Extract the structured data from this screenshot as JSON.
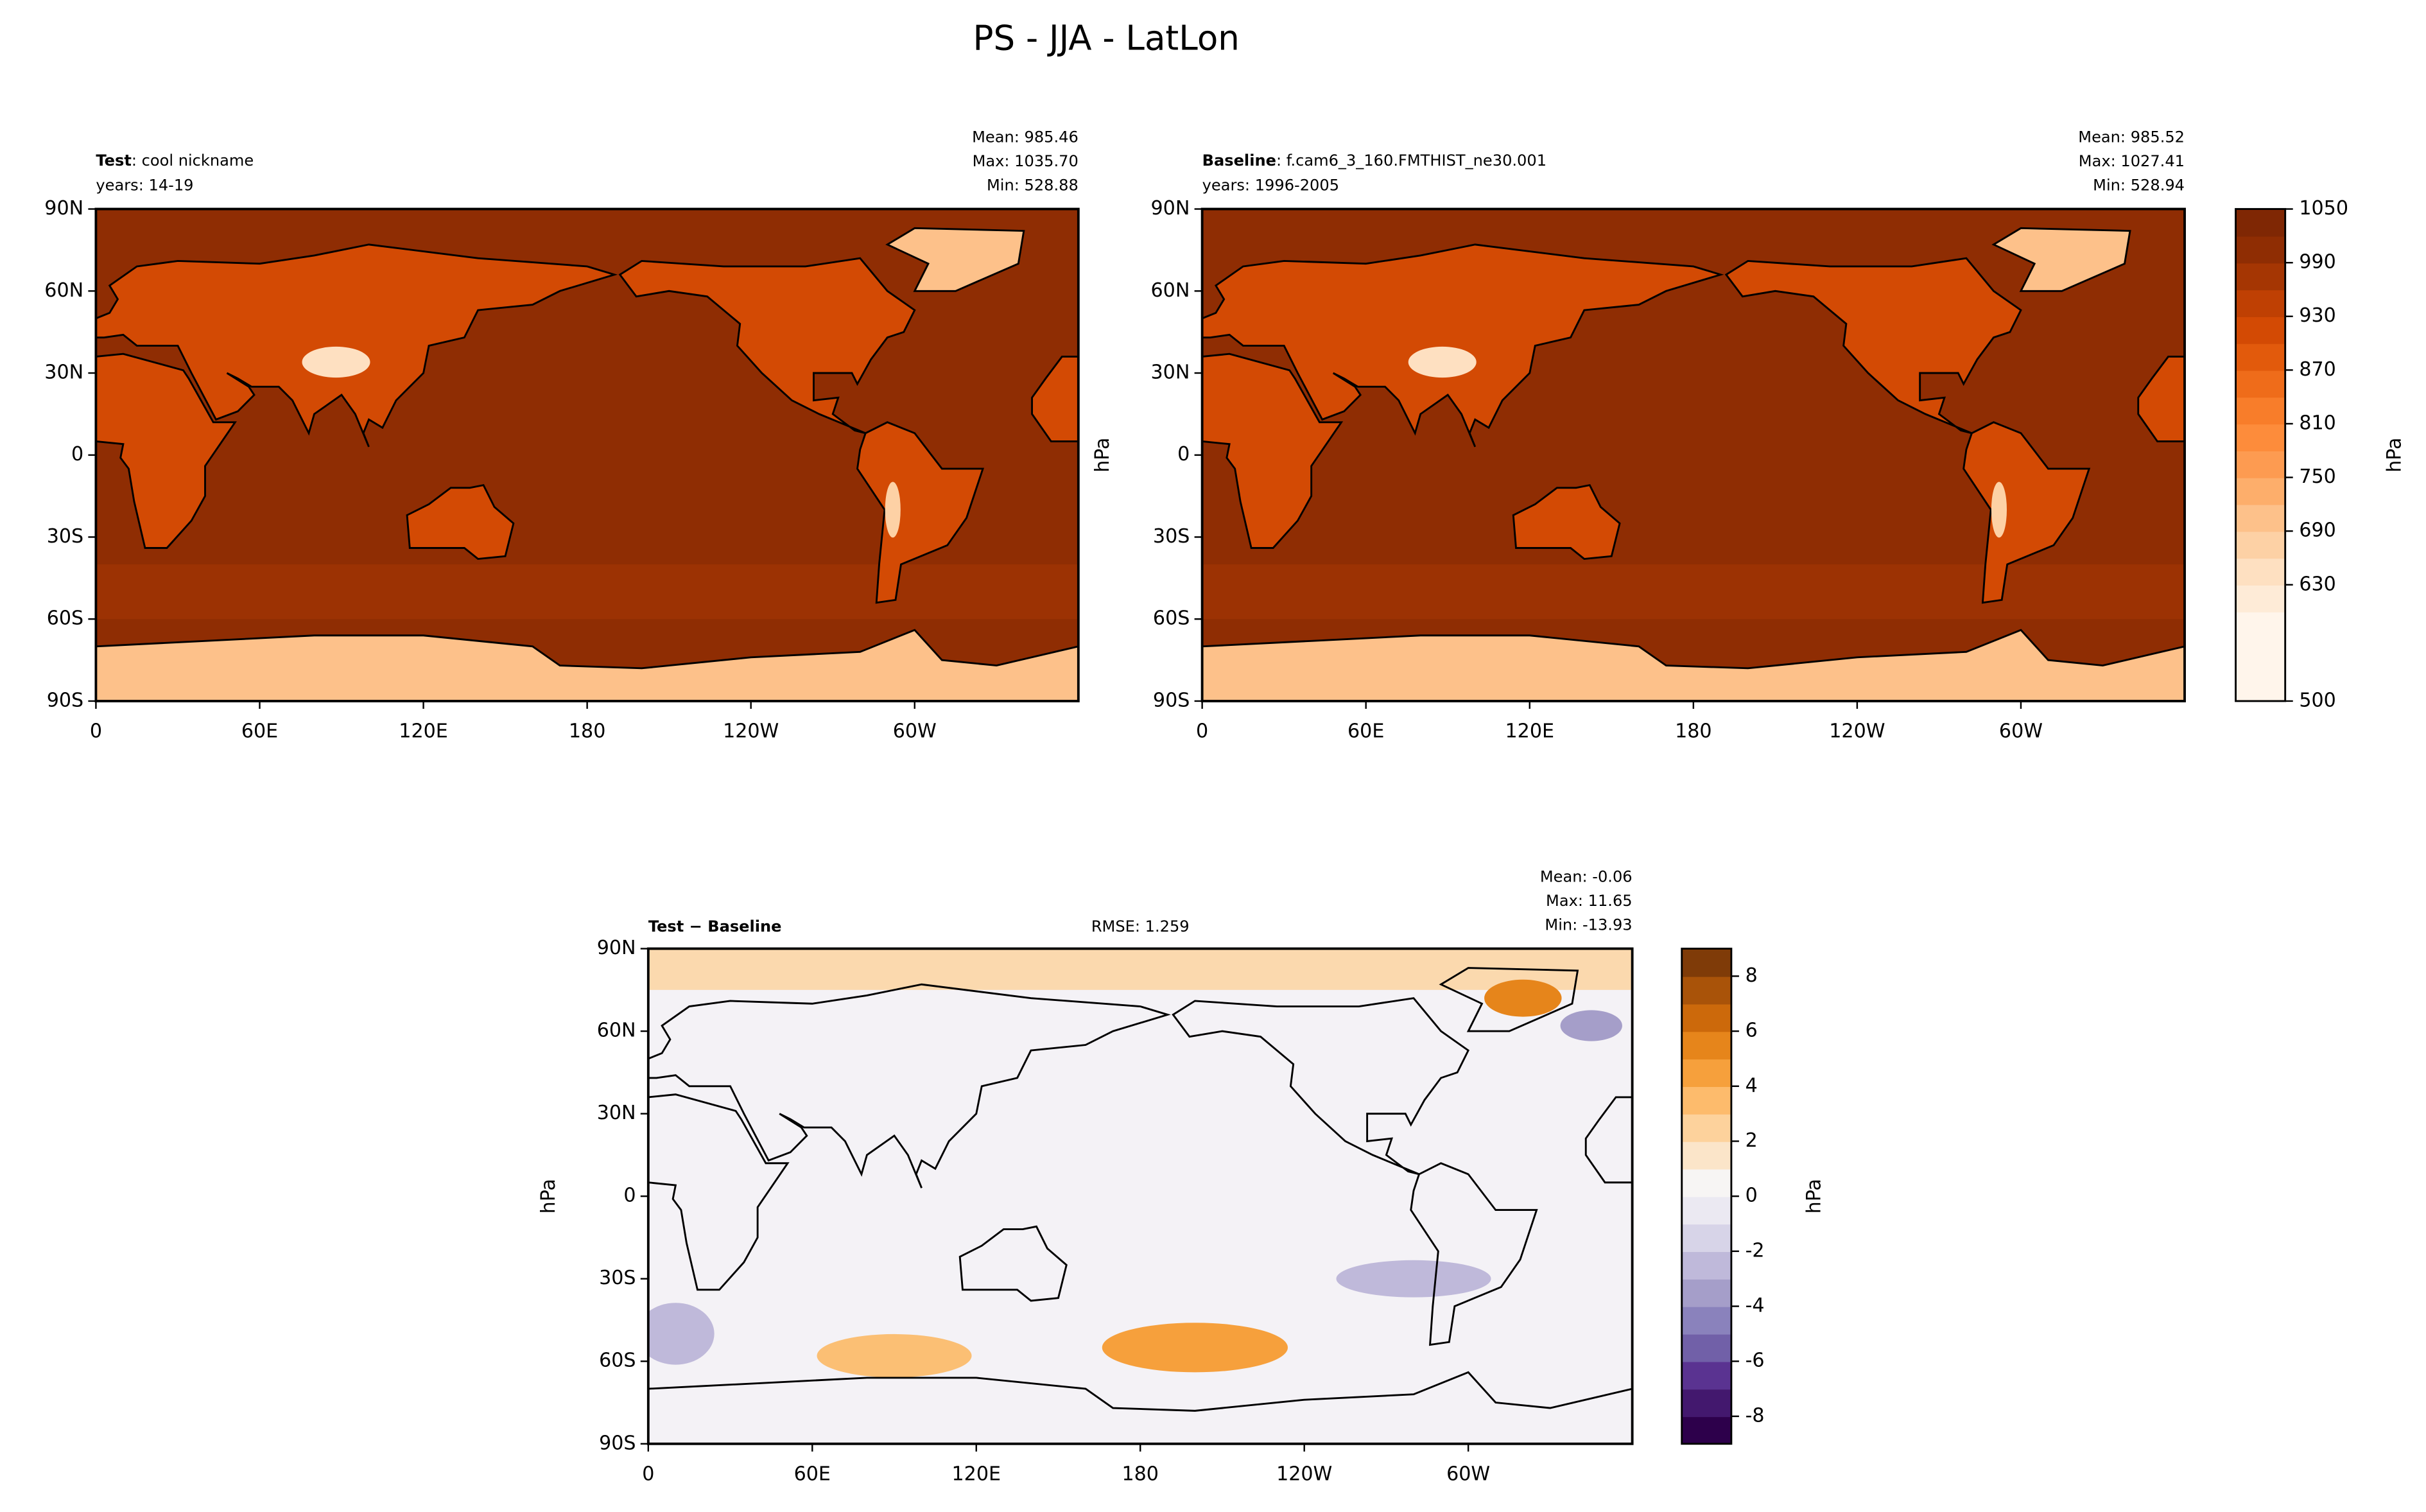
{
  "title": "PS - JJA - LatLon",
  "chart_data": [
    {
      "type": "contour_map",
      "name": "Test",
      "subtitle": ": cool nickname",
      "years": "years: 14-19",
      "stats": [
        "Mean: 985.46",
        "Max: 1035.70",
        "Min: 528.88"
      ],
      "xlim": [
        0,
        360
      ],
      "ylim": [
        -90,
        90
      ],
      "xticks": [
        0,
        {
          "value": 60,
          "label": "60E"
        },
        {
          "value": 120,
          "label": "120E"
        },
        180,
        {
          "value": 240,
          "label": "120W"
        },
        {
          "value": 300,
          "label": "60W"
        }
      ],
      "yticks": [
        {
          "value": 90,
          "label": "90N"
        },
        {
          "value": 60,
          "label": "60N"
        },
        {
          "value": 30,
          "label": "30N"
        },
        0,
        {
          "value": -30,
          "label": "30S"
        },
        {
          "value": -60,
          "label": "60S"
        },
        {
          "value": -90,
          "label": "90S"
        }
      ]
    },
    {
      "type": "contour_map",
      "name": "Baseline",
      "subtitle": ": f.cam6_3_160.FMTHIST_ne30.001",
      "years": "years: 1996-2005",
      "stats": [
        "Mean: 985.52",
        "Max: 1027.41",
        "Min: 528.94"
      ],
      "ylabel": "hPa",
      "xlim": [
        0,
        360
      ],
      "ylim": [
        -90,
        90
      ],
      "xticks": [
        0,
        {
          "value": 60,
          "label": "60E"
        },
        {
          "value": 120,
          "label": "120E"
        },
        180,
        {
          "value": 240,
          "label": "120W"
        },
        {
          "value": 300,
          "label": "60W"
        }
      ],
      "yticks": [
        {
          "value": 90,
          "label": "90N"
        },
        {
          "value": 60,
          "label": "60N"
        },
        {
          "value": 30,
          "label": "30N"
        },
        0,
        {
          "value": -30,
          "label": "30S"
        },
        {
          "value": -60,
          "label": "60S"
        },
        {
          "value": -90,
          "label": "90S"
        }
      ],
      "colorbar": {
        "label": "hPa",
        "lim": [
          500,
          1050
        ],
        "ticks": [
          500,
          630,
          690,
          750,
          810,
          870,
          930,
          990,
          1050
        ],
        "levels": [
          500,
          600,
          630,
          660,
          690,
          720,
          750,
          780,
          810,
          840,
          870,
          900,
          930,
          960,
          990,
          1020,
          1050
        ],
        "colors": [
          "#fff5eb",
          "#feebd7",
          "#fee0c1",
          "#fdd1a5",
          "#fdc18a",
          "#fdae6b",
          "#fd9b51",
          "#fd8c3b",
          "#f87d2a",
          "#ef6c1a",
          "#e25a0c",
          "#d34a04",
          "#bf4003",
          "#a53603",
          "#8f2d03",
          "#7f2704"
        ]
      }
    },
    {
      "type": "diff_map",
      "name": "Test − Baseline",
      "rmse": "RMSE: 1.259",
      "stats": [
        "Mean: -0.06",
        "Max: 11.65",
        "Min: -13.93"
      ],
      "ylabel": "hPa",
      "xlim": [
        0,
        360
      ],
      "ylim": [
        -90,
        90
      ],
      "xticks": [
        0,
        {
          "value": 60,
          "label": "60E"
        },
        {
          "value": 120,
          "label": "120E"
        },
        180,
        {
          "value": 240,
          "label": "120W"
        },
        {
          "value": 300,
          "label": "60W"
        }
      ],
      "yticks": [
        {
          "value": 90,
          "label": "90N"
        },
        {
          "value": 60,
          "label": "60N"
        },
        {
          "value": 30,
          "label": "30N"
        },
        0,
        {
          "value": -30,
          "label": "30S"
        },
        {
          "value": -60,
          "label": "60S"
        },
        {
          "value": -90,
          "label": "90S"
        }
      ],
      "colorbar": {
        "label": "hPa",
        "lim": [
          -9,
          9
        ],
        "ticks": [
          -8,
          -6,
          -4,
          -2,
          0,
          2,
          4,
          6,
          8
        ],
        "levels": [
          -9,
          -8,
          -7,
          -6,
          -5,
          -4,
          -3,
          -2,
          -1,
          0,
          1,
          2,
          3,
          4,
          5,
          6,
          7,
          8,
          9
        ],
        "colors": [
          "#2d004b",
          "#43186e",
          "#5a3391",
          "#7160a8",
          "#8a82bc",
          "#a59ec9",
          "#bfb9da",
          "#d7d4e8",
          "#ebe9f2",
          "#f7f5f4",
          "#fbe5c9",
          "#fdd29c",
          "#fdbb6c",
          "#f6a03c",
          "#e6851b",
          "#cc690b",
          "#a95309",
          "#7f3b08"
        ]
      }
    }
  ]
}
